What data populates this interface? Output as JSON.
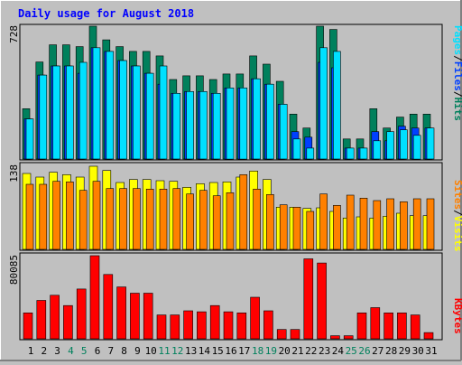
{
  "title": "Daily usage for August 2018",
  "labels": {
    "hits": "Hits",
    "files": "Files",
    "pages": "Pages",
    "visits": "Visits",
    "sites": "Sites",
    "kbytes": "KBytes",
    "sep": "/"
  },
  "colors": {
    "background": "#c0c0c0",
    "title": "#0000ff",
    "hits": "#00805c",
    "files": "#0040ff",
    "pages": "#00e0ff",
    "visits": "#ffff00",
    "sites": "#ff8000",
    "kbytes": "#ff0000",
    "weekend_day": "#00805c",
    "weekday": "#000000"
  },
  "chart_data": [
    {
      "type": "bar",
      "title": "Daily usage for August 2018",
      "categories": [
        "1",
        "2",
        "3",
        "4",
        "5",
        "6",
        "7",
        "8",
        "9",
        "10",
        "11",
        "12",
        "13",
        "14",
        "15",
        "16",
        "17",
        "18",
        "19",
        "20",
        "21",
        "22",
        "23",
        "24",
        "25",
        "26",
        "27",
        "28",
        "29",
        "30",
        "31"
      ],
      "weekend_days": [
        "4",
        "5",
        "11",
        "12",
        "18",
        "19",
        "25",
        "26"
      ],
      "ymax_label": "728",
      "ylim": [
        0,
        728
      ],
      "series": [
        {
          "name": "Hits",
          "values": [
            276,
            532,
            626,
            626,
            616,
            728,
            653,
            616,
            590,
            590,
            565,
            436,
            456,
            456,
            436,
            466,
            466,
            565,
            520,
            426,
            246,
            170,
            728,
            710,
            110,
            110,
            276,
            170,
            230,
            246,
            246
          ]
        },
        {
          "name": "Files",
          "values": [
            220,
            460,
            510,
            510,
            470,
            610,
            590,
            540,
            510,
            470,
            410,
            360,
            370,
            370,
            360,
            390,
            390,
            440,
            410,
            300,
            150,
            120,
            530,
            500,
            60,
            60,
            150,
            100,
            180,
            170,
            170
          ]
        },
        {
          "name": "Pages",
          "values": [
            220,
            460,
            510,
            510,
            530,
            610,
            590,
            540,
            510,
            470,
            510,
            360,
            370,
            370,
            360,
            390,
            390,
            440,
            410,
            300,
            110,
            60,
            610,
            590,
            60,
            60,
            100,
            150,
            160,
            130,
            170
          ]
        }
      ]
    },
    {
      "type": "bar",
      "categories": [
        "1",
        "2",
        "3",
        "4",
        "5",
        "6",
        "7",
        "8",
        "9",
        "10",
        "11",
        "12",
        "13",
        "14",
        "15",
        "16",
        "17",
        "18",
        "19",
        "20",
        "21",
        "22",
        "23",
        "24",
        "25",
        "26",
        "27",
        "28",
        "29",
        "30",
        "31"
      ],
      "ymax_label": "138",
      "ylim": [
        0,
        138
      ],
      "series": [
        {
          "name": "Visits",
          "values": [
            126,
            120,
            128,
            124,
            120,
            138,
            131,
            111,
            116,
            116,
            114,
            113,
            103,
            109,
            111,
            112,
            120,
            130,
            116,
            70,
            70,
            68,
            69,
            63,
            52,
            54,
            52,
            55,
            60,
            56,
            56
          ]
        },
        {
          "name": "Sites",
          "values": [
            108,
            108,
            113,
            112,
            98,
            113,
            101,
            101,
            101,
            100,
            100,
            101,
            92,
            98,
            89,
            94,
            124,
            100,
            91,
            74,
            70,
            63,
            92,
            73,
            90,
            85,
            81,
            84,
            79,
            84,
            84
          ]
        }
      ]
    },
    {
      "type": "bar",
      "categories": [
        "1",
        "2",
        "3",
        "4",
        "5",
        "6",
        "7",
        "8",
        "9",
        "10",
        "11",
        "12",
        "13",
        "14",
        "15",
        "16",
        "17",
        "18",
        "19",
        "20",
        "21",
        "22",
        "23",
        "24",
        "25",
        "26",
        "27",
        "28",
        "29",
        "30",
        "31"
      ],
      "ymax_label": "80085",
      "ylim": [
        0,
        80085
      ],
      "series": [
        {
          "name": "KBytes",
          "values": [
            25000,
            37000,
            42000,
            32000,
            48000,
            80085,
            62000,
            50000,
            44000,
            44000,
            23000,
            23000,
            27000,
            26000,
            32000,
            26000,
            25000,
            40000,
            27000,
            9000,
            9000,
            77000,
            73000,
            3000,
            3000,
            25000,
            30000,
            25000,
            25000,
            23000,
            6000
          ]
        }
      ]
    }
  ]
}
